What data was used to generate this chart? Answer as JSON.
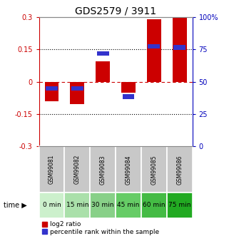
{
  "title": "GDS2579 / 3911",
  "samples": [
    "GSM99081",
    "GSM99082",
    "GSM99083",
    "GSM99084",
    "GSM99085",
    "GSM99086"
  ],
  "time_labels": [
    "0 min",
    "15 min",
    "30 min",
    "45 min",
    "60 min",
    "75 min"
  ],
  "log2_ratio": [
    -0.09,
    -0.105,
    0.095,
    -0.05,
    0.29,
    0.3
  ],
  "percentile_rank_pos": [
    -0.03,
    -0.03,
    0.132,
    -0.068,
    0.165,
    0.16
  ],
  "ylim": [
    -0.3,
    0.3
  ],
  "yticks_left": [
    0.3,
    0.15,
    0.0,
    -0.15,
    -0.3
  ],
  "ytick_left_labels": [
    "0.3",
    "0.15",
    "0",
    "-0.15",
    "-0.3"
  ],
  "yticks_right_vals": [
    100,
    75,
    50,
    25,
    0
  ],
  "yticks_right_labels": [
    "100%",
    "75",
    "50",
    "25",
    "0"
  ],
  "yticks_right_pos": [
    0.3,
    0.15,
    0.0,
    -0.15,
    -0.3
  ],
  "bar_color_red": "#cc0000",
  "bar_color_blue": "#3333cc",
  "bar_width": 0.55,
  "blue_bar_height": 0.022,
  "time_bg_colors": [
    "#ccf0cc",
    "#aae0aa",
    "#88d088",
    "#66cc66",
    "#44bb44",
    "#22aa22"
  ],
  "sample_bg_color": "#c8c8c8",
  "zero_line_color": "#cc0000",
  "dotted_line_color": "#000000",
  "right_axis_color": "#0000bb",
  "left_axis_color": "#cc0000",
  "tick_fontsize": 7,
  "title_fontsize": 10,
  "sample_fontsize": 5.5,
  "time_fontsize": 6.5
}
